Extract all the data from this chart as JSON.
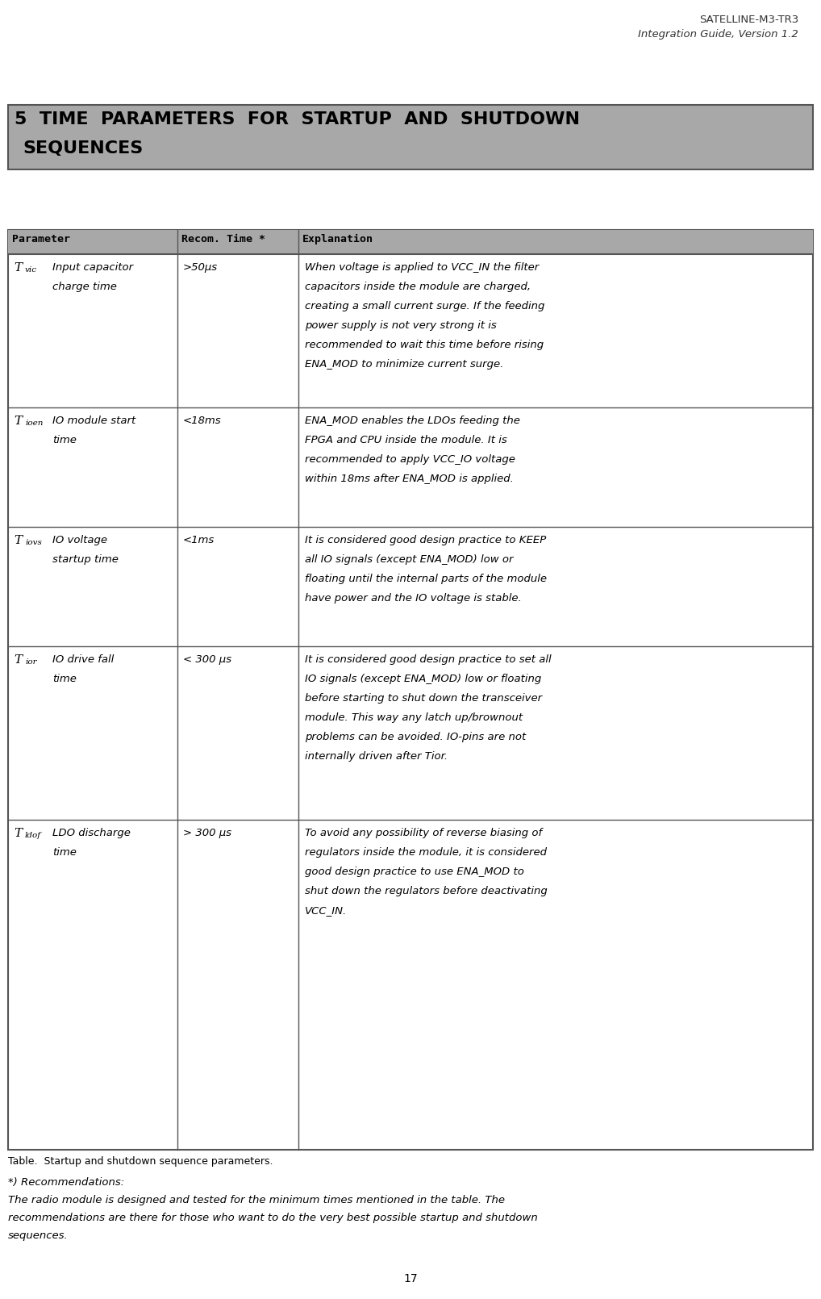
{
  "header_line1": "SATELLINE-M3-TR3",
  "header_line2": "Integration Guide, Version 1.2",
  "section_bg": "#a8a8a8",
  "table_header_bg": "#a8a8a8",
  "table_header_cols": [
    "Parameter",
    "Recom. Time *",
    "Explanation"
  ],
  "rows": [
    {
      "sym": "T",
      "sym_sub": "vic",
      "name": "Input capacitor\ncharge time",
      "time": ">50μs",
      "explanation": "When voltage is applied to VCC_IN the filter\ncapacitors inside the module are charged,\ncreating a small current surge. If the feeding\npower supply is not very strong it is\nrecommended to wait this time before rising\nENA_MOD to minimize current surge."
    },
    {
      "sym": "T",
      "sym_sub": "ioen",
      "name": "IO module start\ntime",
      "time": "<18ms",
      "explanation": "ENA_MOD enables the LDOs feeding the\nFPGA and CPU inside the module. It is\nrecommended to apply VCC_IO voltage\nwithin 18ms after ENA_MOD is applied."
    },
    {
      "sym": "T",
      "sym_sub": "iovs",
      "name": "IO voltage\nstartup time",
      "time": "<1ms",
      "explanation": "It is considered good design practice to KEEP\nall IO signals (except ENA_MOD) low or\nfloating until the internal parts of the module\nhave power and the IO voltage is stable."
    },
    {
      "sym": "T",
      "sym_sub": "ior",
      "name": "IO drive fall\ntime",
      "time": "< 300 μs",
      "explanation": "It is considered good design practice to set all\nIO signals (except ENA_MOD) low or floating\nbefore starting to shut down the transceiver\nmodule. This way any latch up/brownout\nproblems can be avoided. IO-pins are not\ninternally driven after Tior."
    },
    {
      "sym": "T",
      "sym_sub": "ldof",
      "name": "LDO discharge\ntime",
      "time": "> 300 μs",
      "explanation": "To avoid any possibility of reverse biasing of\nregulators inside the module, it is considered\ngood design practice to use ENA_MOD to\nshut down the regulators before deactivating\nVCC_IN."
    }
  ],
  "table_caption": "Table.  Startup and shutdown sequence parameters.",
  "footnote_title": "*) Recommendations:",
  "footnote_body": "The radio module is designed and tested for the minimum times mentioned in the table. The\nrecommendations are there for those who want to do the very best possible startup and shutdown\nsequences.",
  "page_number": "17",
  "bg_color": "#ffffff"
}
